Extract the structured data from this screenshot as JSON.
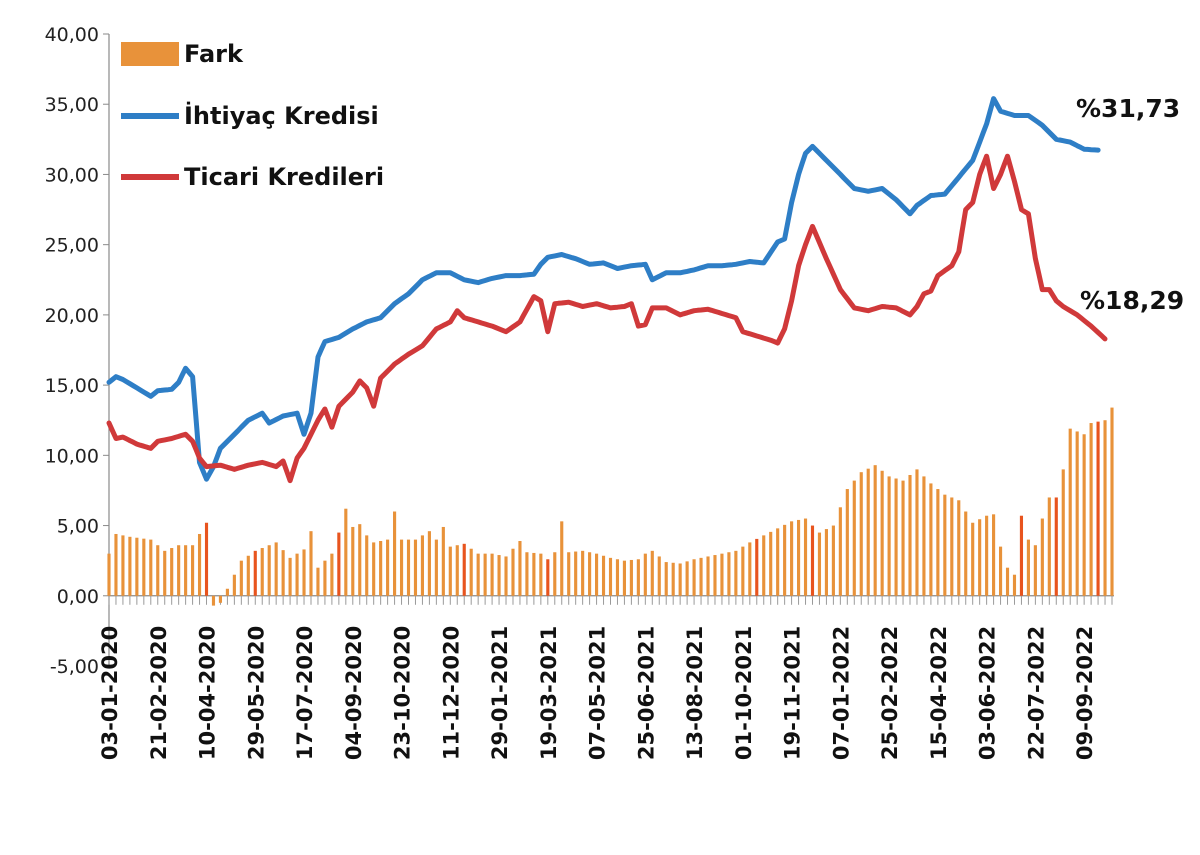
{
  "chart_data": {
    "type": "line",
    "title": "",
    "xlabel": "",
    "ylabel": "",
    "ylim": [
      -5,
      40
    ],
    "yticks": [
      "40,00",
      "35,00",
      "30,00",
      "25,00",
      "20,00",
      "15,00",
      "10,00",
      "5,00",
      "0,00",
      "-5,00"
    ],
    "grid": false,
    "legend_position": "top-left",
    "x_tick_labels": [
      "03-01-2020",
      "21-02-2020",
      "10-04-2020",
      "29-05-2020",
      "17-07-2020",
      "04-09-2020",
      "23-10-2020",
      "11-12-2020",
      "29-01-2021",
      "19-03-2021",
      "07-05-2021",
      "25-06-2021",
      "13-08-2021",
      "01-10-2021",
      "19-11-2021",
      "07-01-2022",
      "25-02-2022",
      "15-04-2022",
      "03-06-2022",
      "22-07-2022",
      "09-09-2022"
    ],
    "x_tick_weeks": [
      0,
      7,
      14,
      21,
      28,
      35,
      42,
      49,
      56,
      63,
      70,
      77,
      84,
      91,
      98,
      105,
      112,
      119,
      126,
      133,
      140
    ],
    "weeks": 145,
    "series": [
      {
        "name": "Fark",
        "kind": "bar",
        "color": "#E8923A",
        "highlight_color": "#E8541E",
        "anchors": [
          [
            0,
            3.0
          ],
          [
            1,
            4.4
          ],
          [
            3,
            4.2
          ],
          [
            6,
            4.0
          ],
          [
            8,
            3.2
          ],
          [
            10,
            3.6
          ],
          [
            12,
            3.6
          ],
          [
            14,
            5.2
          ],
          [
            15,
            -0.7
          ],
          [
            16,
            -0.5
          ],
          [
            17,
            0.5
          ],
          [
            18,
            1.5
          ],
          [
            19,
            2.5
          ],
          [
            21,
            3.2
          ],
          [
            24,
            3.8
          ],
          [
            26,
            2.7
          ],
          [
            28,
            3.3
          ],
          [
            29,
            4.6
          ],
          [
            30,
            2.0
          ],
          [
            32,
            3.0
          ],
          [
            33,
            4.5
          ],
          [
            34,
            6.2
          ],
          [
            35,
            4.9
          ],
          [
            36,
            5.1
          ],
          [
            37,
            4.3
          ],
          [
            38,
            3.8
          ],
          [
            40,
            4.0
          ],
          [
            41,
            6.0
          ],
          [
            42,
            4.0
          ],
          [
            44,
            4.0
          ],
          [
            46,
            4.6
          ],
          [
            47,
            4.0
          ],
          [
            48,
            4.9
          ],
          [
            49,
            3.5
          ],
          [
            51,
            3.7
          ],
          [
            53,
            3.0
          ],
          [
            55,
            3.0
          ],
          [
            57,
            2.8
          ],
          [
            59,
            3.9
          ],
          [
            60,
            3.1
          ],
          [
            62,
            3.0
          ],
          [
            63,
            2.6
          ],
          [
            64,
            3.1
          ],
          [
            65,
            5.3
          ],
          [
            66,
            3.1
          ],
          [
            68,
            3.2
          ],
          [
            70,
            3.0
          ],
          [
            72,
            2.7
          ],
          [
            74,
            2.5
          ],
          [
            76,
            2.6
          ],
          [
            77,
            3.0
          ],
          [
            78,
            3.2
          ],
          [
            80,
            2.4
          ],
          [
            82,
            2.3
          ],
          [
            84,
            2.6
          ],
          [
            86,
            2.8
          ],
          [
            88,
            3.0
          ],
          [
            90,
            3.2
          ],
          [
            92,
            3.8
          ],
          [
            94,
            4.3
          ],
          [
            96,
            4.8
          ],
          [
            98,
            5.3
          ],
          [
            100,
            5.5
          ],
          [
            102,
            4.5
          ],
          [
            104,
            5.0
          ],
          [
            106,
            7.6
          ],
          [
            108,
            8.8
          ],
          [
            110,
            9.3
          ],
          [
            112,
            8.5
          ],
          [
            114,
            8.2
          ],
          [
            116,
            9.0
          ],
          [
            118,
            8.0
          ],
          [
            120,
            7.2
          ],
          [
            122,
            6.8
          ],
          [
            124,
            5.2
          ],
          [
            126,
            5.7
          ],
          [
            127,
            5.8
          ],
          [
            128,
            3.5
          ],
          [
            129,
            2.0
          ],
          [
            130,
            1.5
          ],
          [
            131,
            5.7
          ],
          [
            132,
            4.0
          ],
          [
            133,
            3.6
          ],
          [
            134,
            5.5
          ],
          [
            135,
            7.0
          ],
          [
            136,
            7.0
          ],
          [
            137,
            9.0
          ],
          [
            138,
            11.9
          ],
          [
            140,
            11.5
          ],
          [
            141,
            12.3
          ],
          [
            143,
            12.5
          ],
          [
            144,
            13.4
          ]
        ],
        "highlight_weeks": [
          14,
          21,
          33,
          51,
          63,
          93,
          101,
          131,
          136,
          142
        ]
      },
      {
        "name": "İhtiyaç Kredisi",
        "kind": "line",
        "color": "#2E7EC6",
        "end_label": "%31,73",
        "anchors": [
          [
            0,
            15.2
          ],
          [
            1,
            15.6
          ],
          [
            2,
            15.4
          ],
          [
            4,
            14.8
          ],
          [
            6,
            14.2
          ],
          [
            7,
            14.6
          ],
          [
            9,
            14.7
          ],
          [
            10,
            15.2
          ],
          [
            11,
            16.2
          ],
          [
            12,
            15.6
          ],
          [
            13,
            9.5
          ],
          [
            14,
            8.3
          ],
          [
            15,
            9.2
          ],
          [
            16,
            10.5
          ],
          [
            18,
            11.5
          ],
          [
            20,
            12.5
          ],
          [
            22,
            13.0
          ],
          [
            23,
            12.3
          ],
          [
            25,
            12.8
          ],
          [
            27,
            13.0
          ],
          [
            28,
            11.5
          ],
          [
            29,
            13.0
          ],
          [
            30,
            17.0
          ],
          [
            31,
            18.1
          ],
          [
            33,
            18.4
          ],
          [
            35,
            19.0
          ],
          [
            37,
            19.5
          ],
          [
            39,
            19.8
          ],
          [
            41,
            20.8
          ],
          [
            43,
            21.5
          ],
          [
            45,
            22.5
          ],
          [
            47,
            23.0
          ],
          [
            49,
            23.0
          ],
          [
            51,
            22.5
          ],
          [
            53,
            22.3
          ],
          [
            55,
            22.6
          ],
          [
            57,
            22.8
          ],
          [
            59,
            22.8
          ],
          [
            61,
            22.9
          ],
          [
            62,
            23.6
          ],
          [
            63,
            24.1
          ],
          [
            65,
            24.3
          ],
          [
            67,
            24.0
          ],
          [
            69,
            23.6
          ],
          [
            71,
            23.7
          ],
          [
            73,
            23.3
          ],
          [
            75,
            23.5
          ],
          [
            77,
            23.6
          ],
          [
            78,
            22.5
          ],
          [
            80,
            23.0
          ],
          [
            82,
            23.0
          ],
          [
            84,
            23.2
          ],
          [
            86,
            23.5
          ],
          [
            88,
            23.5
          ],
          [
            90,
            23.6
          ],
          [
            92,
            23.8
          ],
          [
            94,
            23.7
          ],
          [
            96,
            25.2
          ],
          [
            97,
            25.4
          ],
          [
            98,
            28.0
          ],
          [
            99,
            30.0
          ],
          [
            100,
            31.5
          ],
          [
            101,
            32.0
          ],
          [
            103,
            31.0
          ],
          [
            105,
            30.0
          ],
          [
            107,
            29.0
          ],
          [
            109,
            28.8
          ],
          [
            111,
            29.0
          ],
          [
            113,
            28.2
          ],
          [
            115,
            27.2
          ],
          [
            116,
            27.8
          ],
          [
            118,
            28.5
          ],
          [
            120,
            28.6
          ],
          [
            122,
            29.8
          ],
          [
            124,
            31.0
          ],
          [
            126,
            33.6
          ],
          [
            127,
            35.4
          ],
          [
            128,
            34.5
          ],
          [
            130,
            34.2
          ],
          [
            132,
            34.2
          ],
          [
            134,
            33.5
          ],
          [
            136,
            32.5
          ],
          [
            138,
            32.3
          ],
          [
            140,
            31.8
          ],
          [
            142,
            31.73
          ]
        ]
      },
      {
        "name": "Ticari Kredileri",
        "kind": "line",
        "color": "#D0393A",
        "end_label": "%18,29",
        "anchors": [
          [
            0,
            12.3
          ],
          [
            1,
            11.2
          ],
          [
            2,
            11.3
          ],
          [
            4,
            10.8
          ],
          [
            6,
            10.5
          ],
          [
            7,
            11.0
          ],
          [
            9,
            11.2
          ],
          [
            11,
            11.5
          ],
          [
            12,
            11.0
          ],
          [
            13,
            9.8
          ],
          [
            14,
            9.2
          ],
          [
            16,
            9.3
          ],
          [
            18,
            9.0
          ],
          [
            20,
            9.3
          ],
          [
            22,
            9.5
          ],
          [
            24,
            9.2
          ],
          [
            25,
            9.6
          ],
          [
            26,
            8.2
          ],
          [
            27,
            9.8
          ],
          [
            28,
            10.5
          ],
          [
            30,
            12.5
          ],
          [
            31,
            13.3
          ],
          [
            32,
            12.0
          ],
          [
            33,
            13.5
          ],
          [
            35,
            14.5
          ],
          [
            36,
            15.3
          ],
          [
            37,
            14.8
          ],
          [
            38,
            13.5
          ],
          [
            39,
            15.5
          ],
          [
            41,
            16.5
          ],
          [
            43,
            17.2
          ],
          [
            45,
            17.8
          ],
          [
            47,
            19.0
          ],
          [
            49,
            19.5
          ],
          [
            50,
            20.3
          ],
          [
            51,
            19.8
          ],
          [
            53,
            19.5
          ],
          [
            55,
            19.2
          ],
          [
            57,
            18.8
          ],
          [
            59,
            19.5
          ],
          [
            61,
            21.3
          ],
          [
            62,
            21.0
          ],
          [
            63,
            18.8
          ],
          [
            64,
            20.8
          ],
          [
            66,
            20.9
          ],
          [
            68,
            20.6
          ],
          [
            70,
            20.8
          ],
          [
            72,
            20.5
          ],
          [
            74,
            20.6
          ],
          [
            75,
            20.8
          ],
          [
            76,
            19.2
          ],
          [
            77,
            19.3
          ],
          [
            78,
            20.5
          ],
          [
            80,
            20.5
          ],
          [
            82,
            20.0
          ],
          [
            84,
            20.3
          ],
          [
            86,
            20.4
          ],
          [
            88,
            20.1
          ],
          [
            90,
            19.8
          ],
          [
            91,
            18.8
          ],
          [
            93,
            18.5
          ],
          [
            95,
            18.2
          ],
          [
            96,
            18.0
          ],
          [
            97,
            19.0
          ],
          [
            98,
            21.0
          ],
          [
            99,
            23.5
          ],
          [
            100,
            25.0
          ],
          [
            101,
            26.3
          ],
          [
            103,
            24.0
          ],
          [
            105,
            21.8
          ],
          [
            107,
            20.5
          ],
          [
            109,
            20.3
          ],
          [
            111,
            20.6
          ],
          [
            113,
            20.5
          ],
          [
            115,
            20.0
          ],
          [
            116,
            20.6
          ],
          [
            117,
            21.5
          ],
          [
            118,
            21.7
          ],
          [
            119,
            22.8
          ],
          [
            121,
            23.5
          ],
          [
            122,
            24.5
          ],
          [
            123,
            27.5
          ],
          [
            124,
            28.0
          ],
          [
            125,
            30.0
          ],
          [
            126,
            31.3
          ],
          [
            127,
            29.0
          ],
          [
            128,
            30.0
          ],
          [
            129,
            31.3
          ],
          [
            130,
            29.5
          ],
          [
            131,
            27.5
          ],
          [
            132,
            27.2
          ],
          [
            133,
            24.0
          ],
          [
            134,
            21.8
          ],
          [
            135,
            21.8
          ],
          [
            136,
            21.0
          ],
          [
            137,
            20.6
          ],
          [
            139,
            20.0
          ],
          [
            141,
            19.2
          ],
          [
            143,
            18.29
          ]
        ]
      }
    ]
  }
}
